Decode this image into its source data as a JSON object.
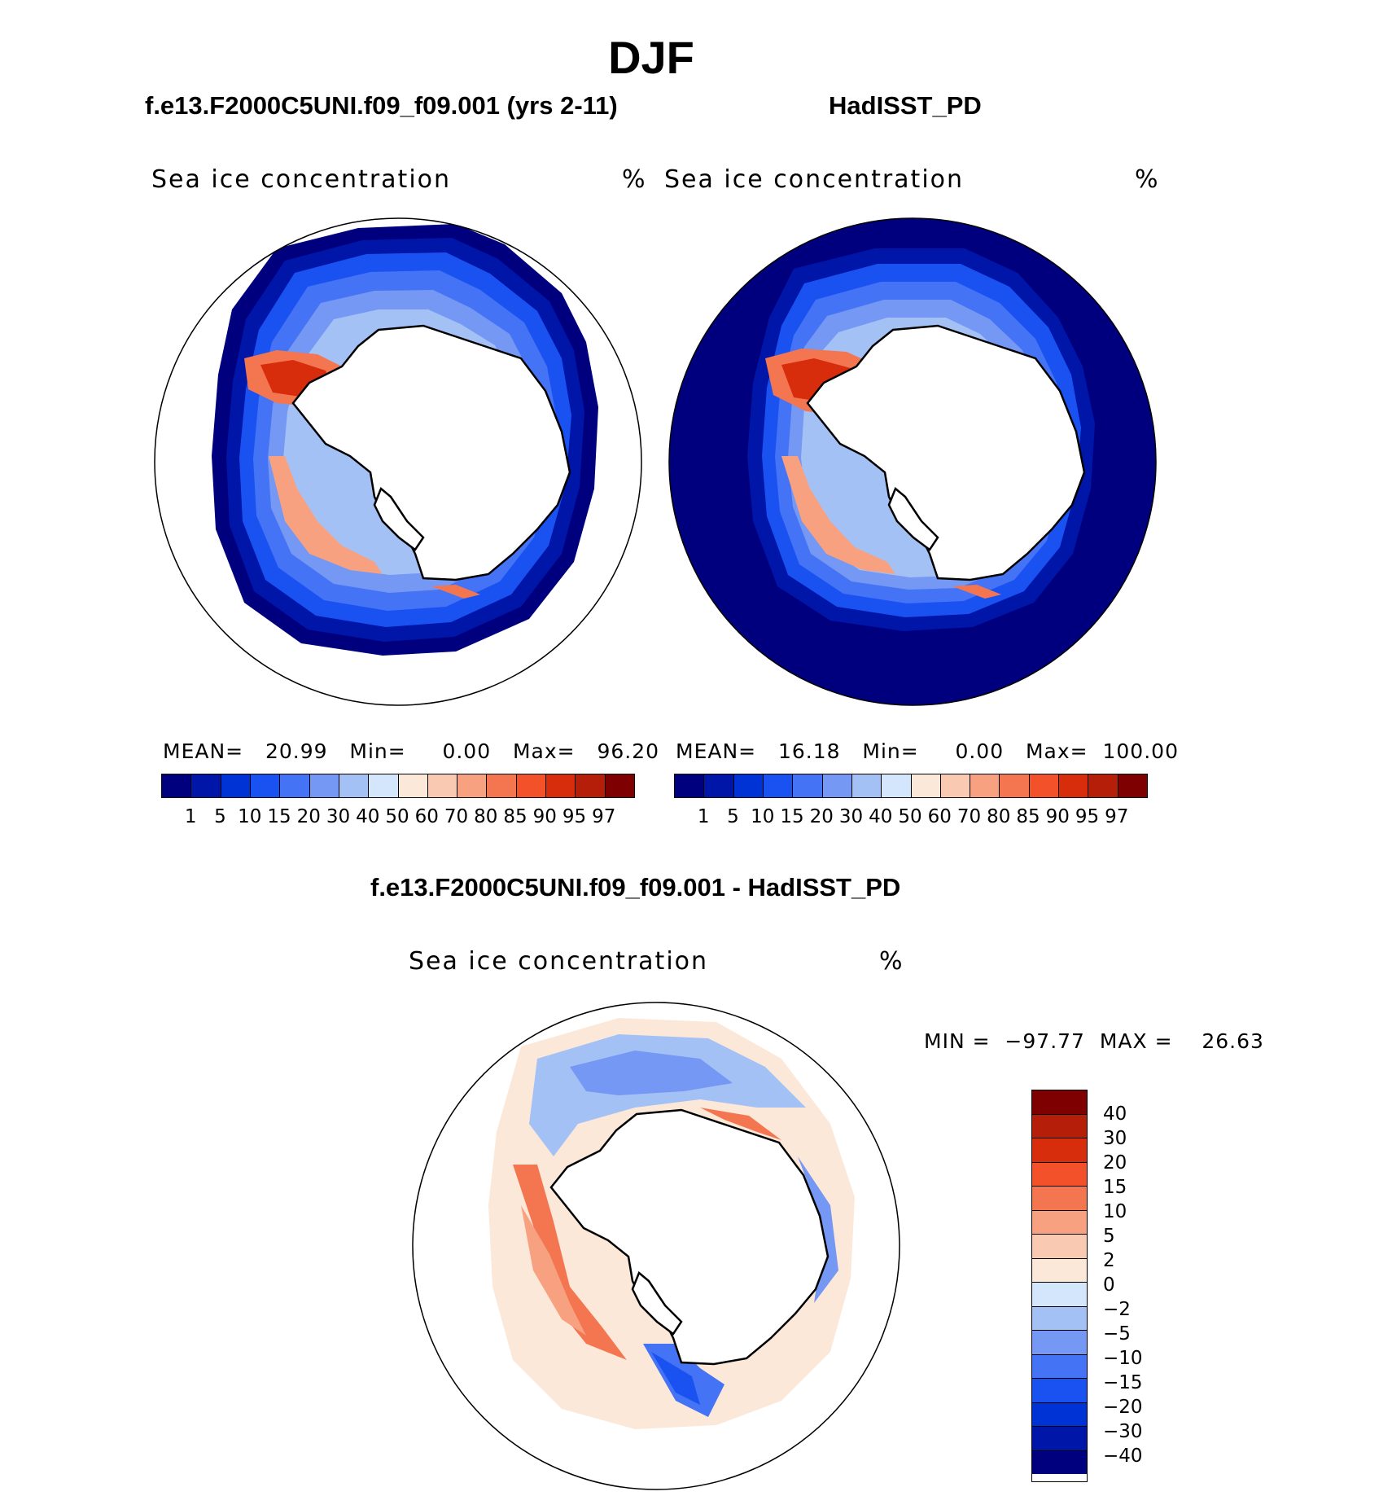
{
  "figure": {
    "title": "DJF",
    "left_panel": {
      "case_title": "f.e13.F2000C5UNI.f09_f09.001 (yrs 2-11)",
      "field": "Sea ice concentration",
      "units": "%",
      "mean_label": "MEAN=",
      "mean": "20.99",
      "min_label": "Min=",
      "min": "0.00",
      "max_label": "Max=",
      "max": "96.20"
    },
    "right_panel": {
      "case_title": "HadISST_PD",
      "field": "Sea ice concentration",
      "units": "%",
      "mean_label": "MEAN=",
      "mean": "16.18",
      "min_label": "Min=",
      "min": "0.00",
      "max_label": "Max=",
      "max": "100.00"
    },
    "diff_panel": {
      "case_title": "f.e13.F2000C5UNI.f09_f09.001 - HadISST_PD",
      "field": "Sea ice concentration",
      "units": "%",
      "minmax_text": "MIN =  −97.77  MAX =    26.63"
    }
  },
  "colorbars": {
    "concentration": {
      "labels": [
        "1",
        "5",
        "10",
        "15",
        "20",
        "30",
        "40",
        "50",
        "60",
        "70",
        "80",
        "85",
        "90",
        "95",
        "97"
      ],
      "colors": [
        "#00007f",
        "#0016a8",
        "#0033d6",
        "#1a52f2",
        "#4573f5",
        "#7498f3",
        "#a4c1f6",
        "#d3e6fb",
        "#fce8d9",
        "#f9c9b1",
        "#f7a181",
        "#f47651",
        "#f2512a",
        "#d82d0c",
        "#b51f0a",
        "#7f0000"
      ]
    },
    "difference": {
      "labels": [
        "40",
        "30",
        "20",
        "15",
        "10",
        "5",
        "2",
        "0",
        "−2",
        "−5",
        "−10",
        "−15",
        "−20",
        "−30",
        "−40"
      ],
      "colors": [
        "#7f0000",
        "#b51f0a",
        "#d82d0c",
        "#f2512a",
        "#f47651",
        "#f7a181",
        "#f9c9b1",
        "#fce8d9",
        "#d3e6fb",
        "#a4c1f6",
        "#7498f3",
        "#4573f5",
        "#1a52f2",
        "#0033d6",
        "#0016a8",
        "#00007f"
      ]
    }
  }
}
